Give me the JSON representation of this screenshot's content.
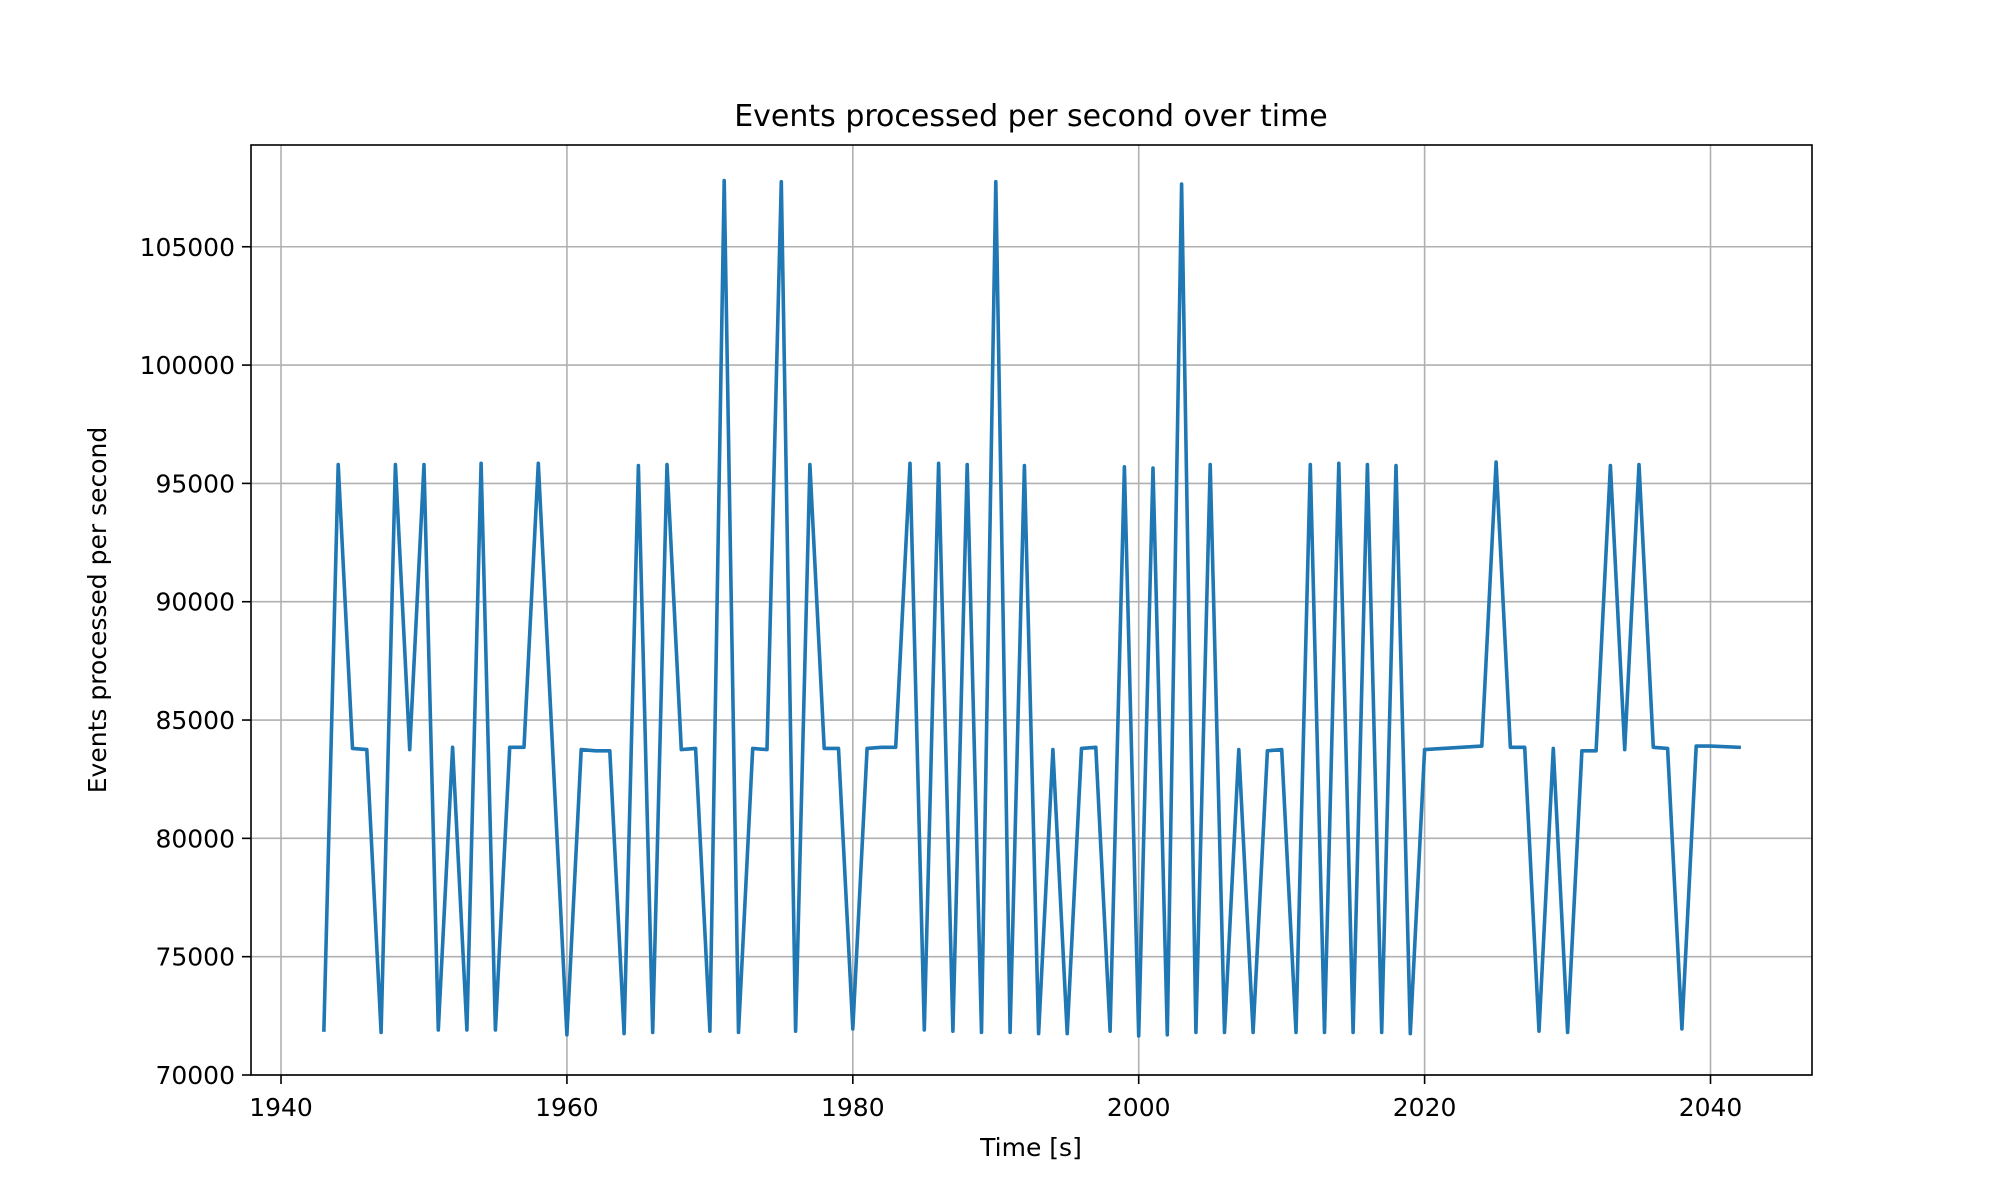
{
  "chart_data": {
    "type": "line",
    "title": "Events processed per second over time",
    "xlabel": "Time [s]",
    "ylabel": "Events processed per second",
    "xlim": [
      1937.9,
      2047.1
    ],
    "ylim": [
      70000,
      109300
    ],
    "xticks": [
      1940,
      1960,
      1980,
      2000,
      2020,
      2040
    ],
    "yticks": [
      70000,
      75000,
      80000,
      85000,
      90000,
      95000,
      100000,
      105000
    ],
    "grid": true,
    "legend": "none",
    "series": [
      {
        "color": "#1f77b4",
        "x": [
          1943,
          1944,
          1945,
          1946,
          1947,
          1948,
          1949,
          1950,
          1951,
          1952,
          1953,
          1954,
          1955,
          1956,
          1957,
          1958,
          1960,
          1961,
          1962,
          1963,
          1964,
          1965,
          1966,
          1967,
          1968,
          1969,
          1970,
          1971,
          1972,
          1973,
          1974,
          1975,
          1976,
          1977,
          1978,
          1979,
          1980,
          1981,
          1982,
          1983,
          1984,
          1985,
          1986,
          1987,
          1988,
          1989,
          1990,
          1991,
          1992,
          1993,
          1994,
          1995,
          1996,
          1997,
          1998,
          1999,
          2000,
          2001,
          2002,
          2003,
          2004,
          2005,
          2006,
          2007,
          2008,
          2009,
          2010,
          2011,
          2012,
          2013,
          2014,
          2015,
          2016,
          2017,
          2018,
          2019,
          2020,
          2024,
          2025,
          2026,
          2027,
          2028,
          2029,
          2030,
          2031,
          2032,
          2033,
          2034,
          2035,
          2036,
          2037,
          2038,
          2039,
          2040,
          2042
        ],
        "y": [
          71900,
          95800,
          83800,
          83750,
          71800,
          95800,
          83750,
          95800,
          71900,
          83850,
          71900,
          95850,
          71900,
          83850,
          83850,
          95850,
          71700,
          83750,
          83700,
          83700,
          71750,
          95750,
          71800,
          95800,
          83750,
          83800,
          71850,
          107800,
          71800,
          83800,
          83750,
          107750,
          71850,
          95800,
          83800,
          83800,
          71950,
          83800,
          83850,
          83850,
          95850,
          71900,
          95850,
          71850,
          95800,
          71800,
          107750,
          71800,
          95750,
          71750,
          83750,
          71750,
          83800,
          83850,
          71850,
          95700,
          71650,
          95650,
          71700,
          107650,
          71800,
          95800,
          71800,
          83750,
          71800,
          83700,
          83750,
          71800,
          95800,
          71800,
          95850,
          71800,
          95800,
          71800,
          95750,
          71750,
          83750,
          83900,
          95900,
          83850,
          83850,
          71850,
          83800,
          71800,
          83700,
          83700,
          95750,
          83750,
          95800,
          83850,
          83800,
          71950,
          83900,
          83900,
          83850
        ]
      }
    ]
  }
}
